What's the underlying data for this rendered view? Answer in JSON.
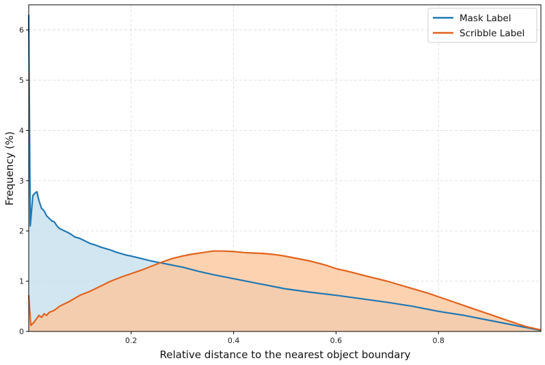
{
  "chart_data": {
    "type": "area",
    "title": "",
    "xlabel": "Relative distance to the nearest object boundary",
    "ylabel": "Frequency (%)",
    "xlim": [
      0,
      1
    ],
    "ylim": [
      0,
      6.5
    ],
    "x_ticks": [
      0.2,
      0.4,
      0.6,
      0.8
    ],
    "y_ticks": [
      0,
      1,
      2,
      3,
      4,
      5,
      6
    ],
    "grid": true,
    "legend_position": "top-right",
    "series": [
      {
        "name": "Mask Label",
        "color": "#1f77b4",
        "fill": "#c5e0ee",
        "x": [
          0,
          0.003,
          0.008,
          0.012,
          0.016,
          0.02,
          0.025,
          0.03,
          0.035,
          0.04,
          0.045,
          0.05,
          0.055,
          0.06,
          0.07,
          0.08,
          0.09,
          0.1,
          0.11,
          0.12,
          0.13,
          0.14,
          0.15,
          0.16,
          0.17,
          0.18,
          0.19,
          0.2,
          0.22,
          0.24,
          0.26,
          0.28,
          0.3,
          0.33,
          0.36,
          0.4,
          0.45,
          0.5,
          0.55,
          0.6,
          0.65,
          0.7,
          0.75,
          0.8,
          0.85,
          0.9,
          0.93,
          0.96,
          0.98,
          1.0
        ],
        "values": [
          6.3,
          2.1,
          2.7,
          2.75,
          2.78,
          2.6,
          2.45,
          2.4,
          2.3,
          2.25,
          2.2,
          2.18,
          2.1,
          2.05,
          2.0,
          1.95,
          1.88,
          1.85,
          1.8,
          1.75,
          1.72,
          1.68,
          1.65,
          1.62,
          1.58,
          1.55,
          1.52,
          1.5,
          1.45,
          1.4,
          1.36,
          1.32,
          1.28,
          1.2,
          1.13,
          1.05,
          0.95,
          0.85,
          0.78,
          0.72,
          0.65,
          0.58,
          0.5,
          0.4,
          0.32,
          0.22,
          0.16,
          0.1,
          0.06,
          0.02
        ]
      },
      {
        "name": "Scribble Label",
        "color": "#e2611b",
        "fill": "#fcc79d",
        "x": [
          0,
          0.004,
          0.01,
          0.015,
          0.02,
          0.025,
          0.03,
          0.035,
          0.04,
          0.05,
          0.06,
          0.07,
          0.08,
          0.09,
          0.1,
          0.12,
          0.14,
          0.16,
          0.18,
          0.2,
          0.22,
          0.24,
          0.26,
          0.28,
          0.3,
          0.32,
          0.34,
          0.36,
          0.38,
          0.4,
          0.42,
          0.44,
          0.46,
          0.48,
          0.5,
          0.52,
          0.55,
          0.58,
          0.6,
          0.63,
          0.66,
          0.7,
          0.74,
          0.78,
          0.82,
          0.86,
          0.9,
          0.94,
          0.97,
          1.0
        ],
        "values": [
          0.72,
          0.12,
          0.18,
          0.25,
          0.32,
          0.28,
          0.35,
          0.32,
          0.38,
          0.42,
          0.5,
          0.55,
          0.6,
          0.66,
          0.72,
          0.8,
          0.9,
          1.0,
          1.08,
          1.15,
          1.22,
          1.3,
          1.38,
          1.45,
          1.5,
          1.54,
          1.57,
          1.6,
          1.6,
          1.59,
          1.57,
          1.56,
          1.55,
          1.53,
          1.5,
          1.46,
          1.4,
          1.32,
          1.25,
          1.18,
          1.1,
          1.0,
          0.88,
          0.76,
          0.62,
          0.48,
          0.34,
          0.2,
          0.1,
          0.03
        ]
      }
    ]
  }
}
